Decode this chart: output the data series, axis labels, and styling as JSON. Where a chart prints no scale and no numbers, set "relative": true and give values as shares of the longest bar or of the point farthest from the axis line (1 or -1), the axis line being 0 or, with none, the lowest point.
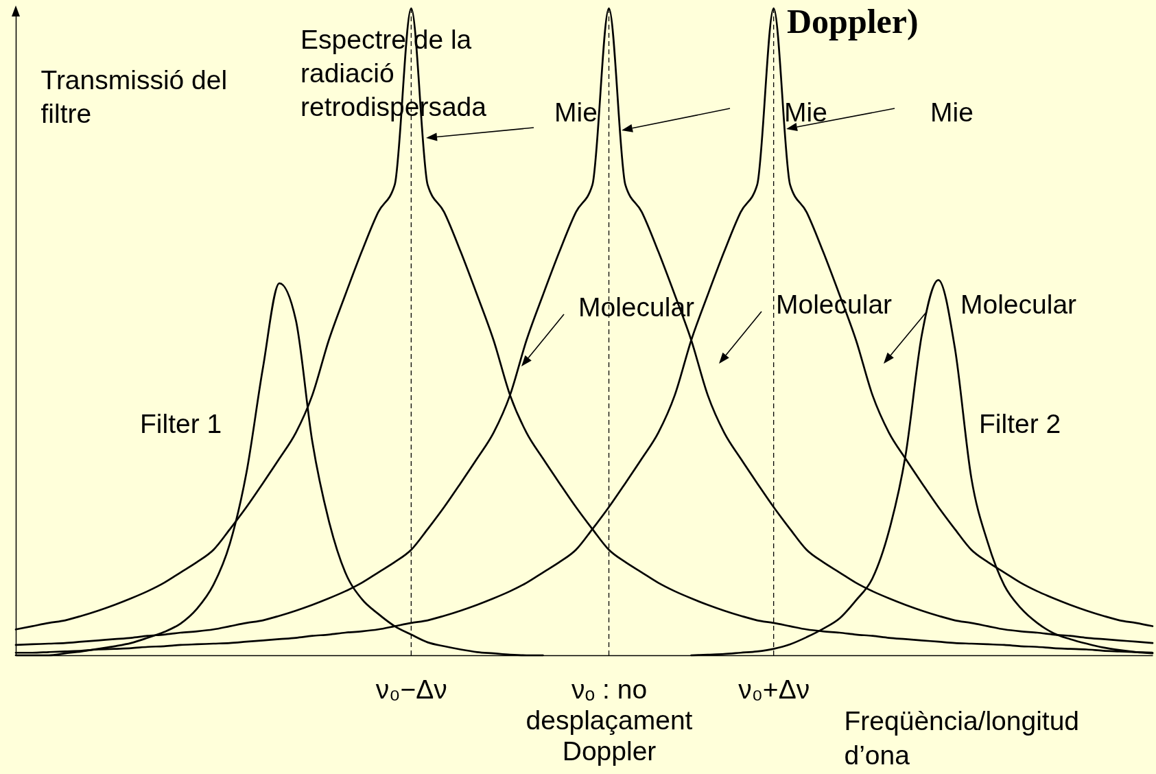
{
  "chart_data": {
    "type": "line",
    "title": "Doppler)",
    "xlabel": "Freqüència/longitud\nd’ona",
    "ylabel": "Transmissió del\nfiltre",
    "relative": true,
    "categories": [
      null,
      null,
      null,
      null,
      null,
      null,
      null,
      null,
      null,
      null,
      null,
      null,
      null,
      null,
      null,
      null,
      null,
      null,
      null,
      null,
      null,
      null,
      null,
      null,
      "ν₀−Δν",
      null,
      null,
      null,
      null,
      null,
      null,
      null,
      null,
      null,
      null,
      null,
      "νₒ : no\ndesplaçament\nDoppler",
      null,
      null,
      null,
      null,
      null,
      null,
      null,
      null,
      null,
      "ν₀+Δν",
      null,
      null,
      null,
      null,
      null,
      null,
      null,
      null,
      null,
      null,
      null,
      null,
      null,
      null,
      null,
      null,
      null,
      null,
      null,
      null,
      null,
      null,
      null
    ],
    "series": [
      {
        "name": "Filter 1",
        "color": "#000000",
        "values": [
          0,
          0,
          0,
          0.003,
          0.006,
          0.01,
          0.014,
          0.019,
          0.027,
          0.036,
          0.049,
          0.072,
          0.109,
          0.173,
          0.282,
          0.444,
          0.575,
          0.518,
          0.33,
          0.208,
          0.128,
          0.087,
          0.064,
          0.045,
          0.032,
          0.02,
          0.014,
          0.009,
          0.005,
          0.003,
          0.001,
          0,
          0,
          null,
          null,
          null,
          null,
          null,
          null,
          null,
          null,
          null,
          null,
          null,
          null,
          null,
          null,
          null,
          null,
          null,
          null,
          null,
          null,
          null,
          null,
          null,
          null,
          null,
          null,
          null,
          null,
          null,
          null,
          null,
          null,
          null,
          null,
          null,
          null,
          null
        ]
      },
      {
        "color": "#000000",
        "values": [
          0.04,
          0.045,
          0.05,
          0.054,
          0.061,
          0.069,
          0.078,
          0.088,
          0.099,
          0.112,
          0.128,
          0.144,
          0.163,
          0.195,
          0.229,
          0.266,
          0.304,
          0.344,
          0.402,
          0.487,
          0.557,
          0.624,
          0.685,
          0.727,
          1,
          0.727,
          0.685,
          0.624,
          0.557,
          0.487,
          0.402,
          0.344,
          0.304,
          0.266,
          0.229,
          0.195,
          0.163,
          0.144,
          0.128,
          0.112,
          0.099,
          0.088,
          0.078,
          0.069,
          0.061,
          0.054,
          0.05,
          0.045,
          0.04,
          0.037,
          0.035,
          0.032,
          0.03,
          0.027,
          0.025,
          0.023,
          0.021,
          0.019,
          0.018,
          0.017,
          0.016,
          0.014,
          0.013,
          0.011,
          0.01,
          0.009,
          0.007,
          0.006,
          0.005,
          0.004
        ]
      },
      {
        "color": "#000000",
        "values": [
          0.016,
          0.017,
          0.018,
          0.019,
          0.021,
          0.023,
          0.025,
          0.027,
          0.03,
          0.032,
          0.035,
          0.037,
          0.04,
          0.045,
          0.05,
          0.054,
          0.061,
          0.069,
          0.078,
          0.088,
          0.099,
          0.112,
          0.128,
          0.144,
          0.163,
          0.195,
          0.229,
          0.266,
          0.304,
          0.344,
          0.402,
          0.487,
          0.557,
          0.624,
          0.685,
          0.727,
          1,
          0.727,
          0.685,
          0.624,
          0.557,
          0.487,
          0.402,
          0.344,
          0.304,
          0.266,
          0.229,
          0.195,
          0.163,
          0.144,
          0.128,
          0.112,
          0.099,
          0.088,
          0.078,
          0.069,
          0.061,
          0.054,
          0.05,
          0.045,
          0.04,
          0.037,
          0.035,
          0.032,
          0.03,
          0.027,
          0.025,
          0.023,
          0.021,
          0.019
        ]
      },
      {
        "color": "#000000",
        "values": [
          0.004,
          0.004,
          0.005,
          0.006,
          0.007,
          0.009,
          0.01,
          0.011,
          0.013,
          0.014,
          0.016,
          0.017,
          0.018,
          0.019,
          0.021,
          0.023,
          0.025,
          0.027,
          0.03,
          0.032,
          0.035,
          0.037,
          0.04,
          0.045,
          0.05,
          0.054,
          0.061,
          0.069,
          0.078,
          0.088,
          0.099,
          0.112,
          0.128,
          0.144,
          0.163,
          0.195,
          0.229,
          0.266,
          0.304,
          0.344,
          0.402,
          0.487,
          0.557,
          0.624,
          0.685,
          0.727,
          1,
          0.727,
          0.685,
          0.624,
          0.557,
          0.487,
          0.402,
          0.344,
          0.304,
          0.266,
          0.229,
          0.195,
          0.163,
          0.144,
          0.128,
          0.112,
          0.099,
          0.088,
          0.078,
          0.069,
          0.061,
          0.054,
          0.05,
          0.045
        ]
      },
      {
        "name": "Filter 2",
        "color": "#000000",
        "values": [
          null,
          null,
          null,
          null,
          null,
          null,
          null,
          null,
          null,
          null,
          null,
          null,
          null,
          null,
          null,
          null,
          null,
          null,
          null,
          null,
          null,
          null,
          null,
          null,
          null,
          null,
          null,
          null,
          null,
          null,
          null,
          null,
          null,
          null,
          null,
          null,
          null,
          null,
          null,
          null,
          null,
          0,
          0.001,
          0.002,
          0.004,
          0.006,
          0.01,
          0.017,
          0.028,
          0.041,
          0.057,
          0.085,
          0.119,
          0.192,
          0.308,
          0.496,
          0.58,
          0.475,
          0.274,
          0.174,
          0.108,
          0.073,
          0.05,
          0.034,
          0.025,
          0.018,
          0.012,
          0.008,
          0.005,
          0.003
        ]
      }
    ],
    "ref_lines": [
      {
        "axis": "x",
        "value": "ν₀−Δν",
        "line_style": "dashed",
        "color": "#000000"
      },
      {
        "axis": "x",
        "value": "νₒ : no\ndesplaçament\nDoppler",
        "line_style": "dashed",
        "color": "#000000"
      },
      {
        "axis": "x",
        "value": "ν₀+Δν",
        "line_style": "dashed",
        "color": "#000000"
      }
    ],
    "annotations": [
      "Espectre de la\nradiació\nretrodispersada",
      "Mie",
      "Mie",
      "Mie",
      "Molecular",
      "Molecular",
      "Molecular"
    ]
  }
}
